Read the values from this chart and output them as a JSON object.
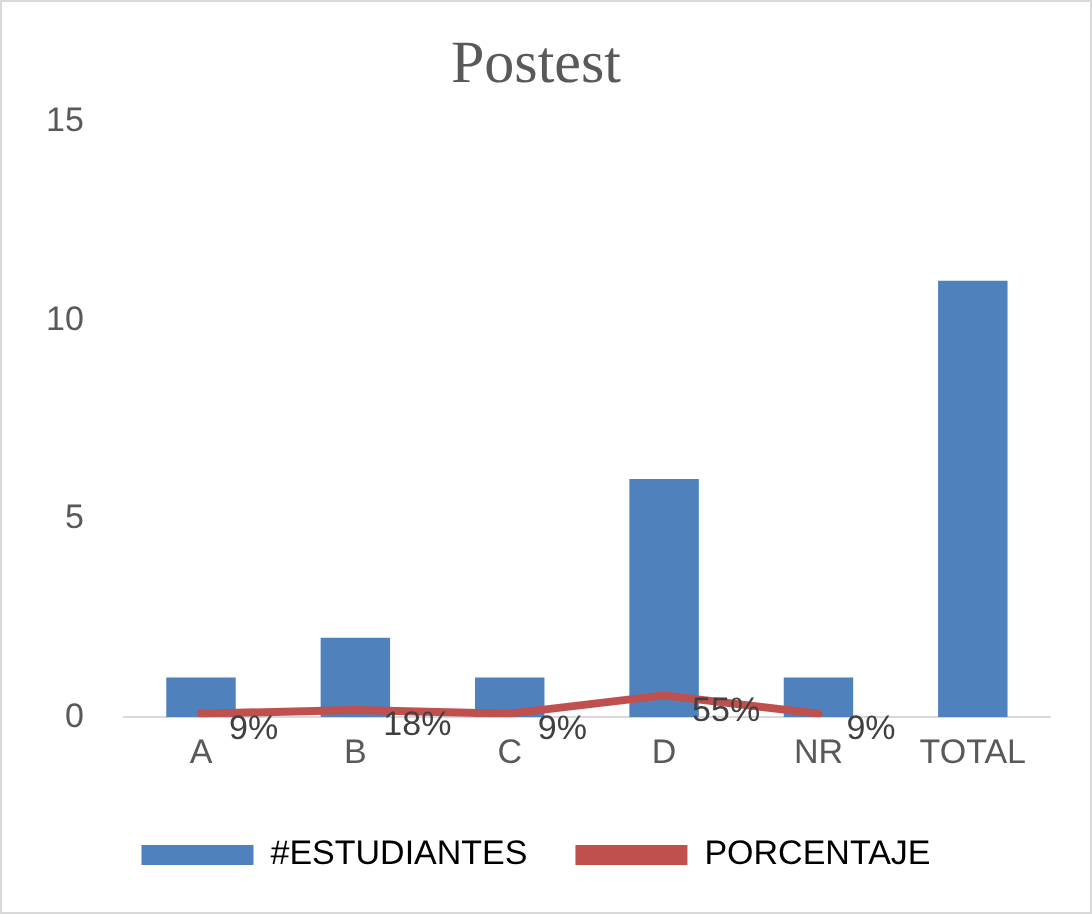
{
  "chart_data": {
    "type": "bar",
    "title": "Postest",
    "categories": [
      "A",
      "B",
      "C",
      "D",
      "NR",
      "TOTAL"
    ],
    "series": [
      {
        "name": "#ESTUDIANTES",
        "color": "#4f81bd",
        "values": [
          1,
          2,
          1,
          6,
          1,
          11
        ]
      },
      {
        "name": "PORCENTAJE",
        "type": "line",
        "color": "#c0504d",
        "values": [
          0.09,
          0.18,
          0.09,
          0.55,
          0.09,
          null
        ],
        "value_labels": [
          "9%",
          "18%",
          "9%",
          "55%",
          "9%",
          null
        ]
      }
    ],
    "ylim": [
      0,
      15
    ],
    "yticks": [
      0,
      5,
      10,
      15
    ],
    "grid": false,
    "legend": "bottom",
    "marker": "none"
  }
}
